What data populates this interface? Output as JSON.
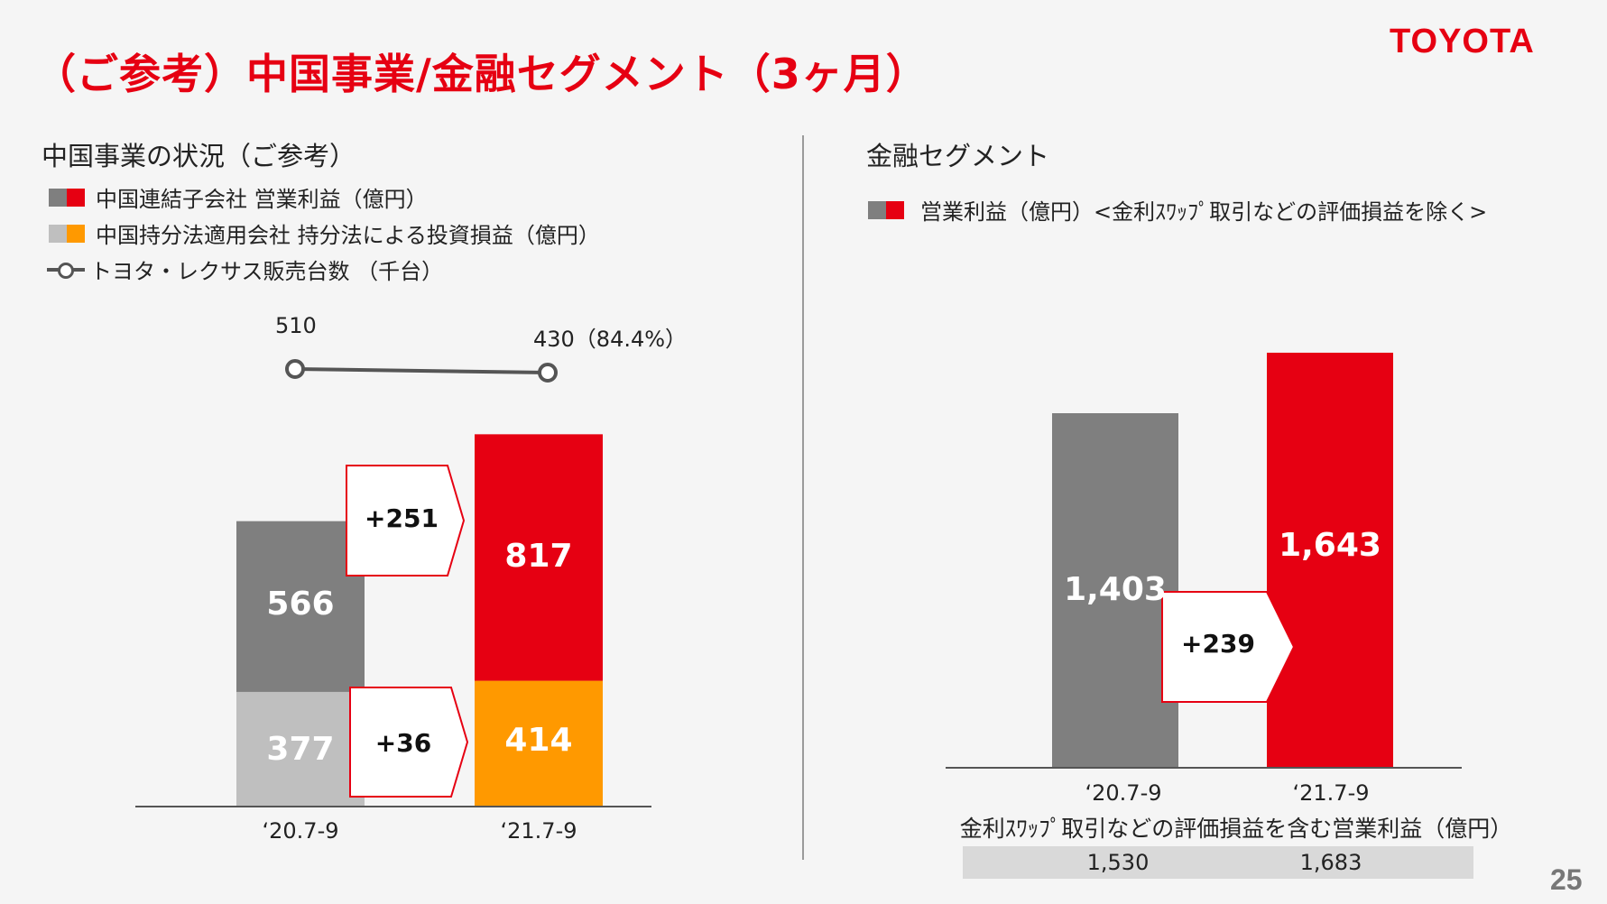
{
  "page": {
    "title": "（ご参考）中国事業/金融セグメント（3ヶ月）",
    "logo": "TOYOTA",
    "page_number": "25"
  },
  "colors": {
    "accent_red": "#e60012",
    "gray_dark": "#7f7f7f",
    "gray_light": "#bfbfbf",
    "orange": "#ff9900",
    "line": "#555555"
  },
  "left": {
    "section_title": "中国事業の状況（ご参考）",
    "legend": [
      {
        "label": "中国連結子会社 営業利益（億円）",
        "icon": "gray-red-swatch"
      },
      {
        "label": "中国持分法適用会社 持分法による投資損益（億円）",
        "icon": "lightgray-orange-swatch"
      },
      {
        "label": "トヨタ・レクサス販売台数 （千台）",
        "icon": "line-marker-icon"
      }
    ],
    "diff_upper": "+251",
    "diff_lower": "+36",
    "sales_labels": [
      "510",
      "430（84.4%）"
    ]
  },
  "right": {
    "section_title": "金融セグメント",
    "legend": [
      {
        "label": "営業利益（億円）<金利ｽﾜｯﾌﾟ取引などの評価損益を除く>",
        "icon": "gray-red-swatch"
      }
    ],
    "diff": "+239",
    "table_caption": "金利ｽﾜｯﾌﾟ取引などの評価損益を含む営業利益（億円）",
    "table_values": [
      "1,530",
      "1,683"
    ]
  },
  "chart_data": [
    {
      "type": "bar",
      "stacked": true,
      "categories": [
        "‘20.7-9",
        "‘21.7-9"
      ],
      "series": [
        {
          "name": "中国持分法適用会社 持分法による投資損益（億円）",
          "values": [
            377,
            414
          ]
        },
        {
          "name": "中国連結子会社 営業利益（億円）",
          "values": [
            566,
            817
          ]
        }
      ],
      "series_labels": [
        [
          "377",
          "414"
        ],
        [
          "566",
          "817"
        ]
      ],
      "line_series": {
        "name": "トヨタ・レクサス販売台数 （千台）",
        "values": [
          510,
          430
        ]
      }
    },
    {
      "type": "bar",
      "categories": [
        "‘20.7-9",
        "‘21.7-9"
      ],
      "series": [
        {
          "name": "営業利益（億円）<金利ｽﾜｯﾌﾟ取引などの評価損益を除く>",
          "values": [
            1403,
            1643
          ]
        }
      ],
      "series_labels": [
        [
          "1,403",
          "1,643"
        ]
      ]
    }
  ]
}
